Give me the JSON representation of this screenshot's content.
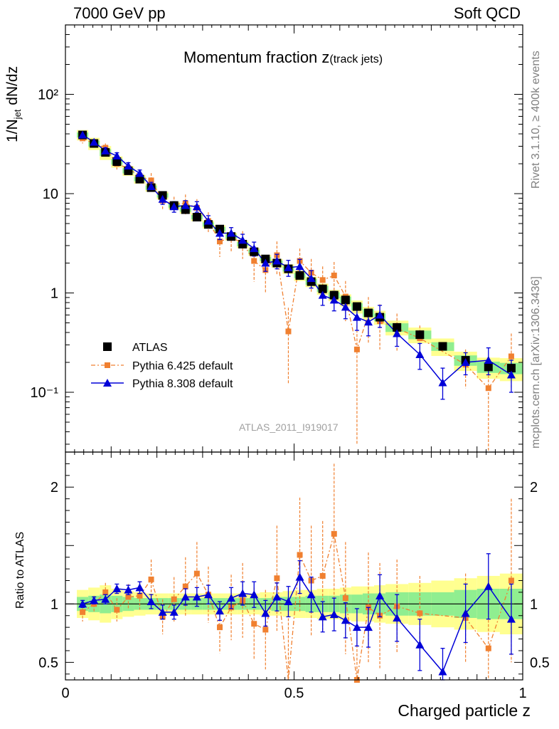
{
  "header": {
    "left": "7000 GeV pp",
    "right": "Soft QCD"
  },
  "side_labels": {
    "rivet": "Rivet 3.1.10, ≥ 400k events",
    "mcplots": "mcplots.cern.ch [arXiv:1306.3436]"
  },
  "colors": {
    "atlas": "#000000",
    "pythia6": "#f08030",
    "pythia8": "#0000d8",
    "band_inner": "#90ee90",
    "band_outer": "#ffff90",
    "watermark": "#a0a0a0"
  },
  "chart_data": [
    {
      "type": "scatter",
      "panel": "main",
      "title": "Momentum fraction z(track jets)",
      "title_main": "Momentum fraction z",
      "title_sub": "(track jets)",
      "watermark": "ATLAS_2011_I919017",
      "ylabel_main": "1/N",
      "ylabel_sub": "jet",
      "ylabel_rest": " dN/dz",
      "xlabel": "Charged particle z",
      "xlim": [
        0,
        1
      ],
      "ylim": [
        0.025,
        500
      ],
      "yscale": "log",
      "xticks": [
        "0",
        "0.5",
        "1"
      ],
      "yticks": [
        "10⁻¹",
        "1",
        "10",
        "10²"
      ],
      "legend_position": "lower-left",
      "x": [
        0.0375,
        0.0625,
        0.0875,
        0.1125,
        0.1375,
        0.1625,
        0.1875,
        0.2125,
        0.2375,
        0.2625,
        0.2875,
        0.3125,
        0.3375,
        0.3625,
        0.3875,
        0.4125,
        0.4375,
        0.4625,
        0.4875,
        0.5125,
        0.5375,
        0.5625,
        0.5875,
        0.6125,
        0.6375,
        0.6625,
        0.6875,
        0.725,
        0.775,
        0.825,
        0.875,
        0.925,
        0.975
      ],
      "series": [
        {
          "name": "ATLAS",
          "values": [
            39,
            32,
            26,
            21,
            17,
            14,
            11.5,
            9.6,
            7.6,
            6.9,
            5.8,
            4.9,
            4.4,
            3.7,
            3.1,
            2.6,
            2.2,
            2.0,
            1.75,
            1.5,
            1.3,
            1.1,
            0.95,
            0.85,
            0.73,
            0.63,
            0.57,
            0.45,
            0.38,
            0.29,
            0.21,
            0.18,
            0.175
          ]
        },
        {
          "name": "Pythia 6.425 default",
          "values": [
            36,
            32,
            29,
            20,
            18,
            15,
            13.6,
            8.5,
            7.8,
            8.0,
            7.2,
            5.3,
            3.3,
            3.6,
            3.2,
            2.1,
            1.7,
            2.4,
            0.41,
            2.1,
            1.6,
            1.35,
            1.5,
            0.92,
            0.27,
            0.61,
            0.52,
            0.44,
            0.35,
            null,
            0.19,
            0.11,
            0.23
          ],
          "err_low": [
            4,
            3,
            3,
            2.5,
            2.5,
            2,
            2.5,
            1.5,
            1.5,
            1.8,
            1.6,
            1.2,
            1.0,
            1.0,
            1.0,
            0.8,
            0.7,
            0.9,
            0.29,
            0.7,
            0.6,
            0.5,
            0.55,
            0.4,
            0.24,
            0.3,
            0.25,
            0.18,
            0.12,
            0,
            0.08,
            0.09,
            0.12
          ],
          "err_high": [
            4,
            3,
            3,
            2.5,
            2.5,
            2,
            2.5,
            1.5,
            1.5,
            1.8,
            1.6,
            1.2,
            1.0,
            1.0,
            1.0,
            0.8,
            0.7,
            0.9,
            0.3,
            0.7,
            0.6,
            0.5,
            0.55,
            0.4,
            0.2,
            0.3,
            0.25,
            0.18,
            0.12,
            0,
            0.08,
            0.09,
            0.16
          ]
        },
        {
          "name": "Pythia 8.308 default",
          "values": [
            39,
            33,
            27,
            24,
            19,
            16,
            11.8,
            8.8,
            7.4,
            7.6,
            7.4,
            5.3,
            4.0,
            4.0,
            3.4,
            2.8,
            2.0,
            2.1,
            1.8,
            1.85,
            1.4,
            0.95,
            0.85,
            0.72,
            0.57,
            0.51,
            0.6,
            0.39,
            0.24,
            0.125,
            0.2,
            0.21,
            0.15
          ],
          "err_low": [
            2.5,
            2,
            2,
            1.8,
            1.5,
            1.3,
            1.2,
            1.0,
            0.9,
            0.9,
            0.9,
            0.7,
            0.55,
            0.55,
            0.5,
            0.45,
            0.35,
            0.35,
            0.33,
            0.33,
            0.28,
            0.2,
            0.19,
            0.17,
            0.15,
            0.14,
            0.15,
            0.1,
            0.07,
            0.04,
            0.05,
            0.06,
            0.05
          ],
          "err_high": [
            2.5,
            2,
            2,
            1.8,
            1.5,
            1.3,
            1.2,
            1.0,
            0.9,
            0.9,
            0.9,
            0.7,
            0.55,
            0.55,
            0.5,
            0.45,
            0.35,
            0.35,
            0.33,
            0.33,
            0.28,
            0.2,
            0.19,
            0.17,
            0.15,
            0.14,
            0.15,
            0.1,
            0.07,
            0.05,
            0.05,
            0.07,
            0.06
          ]
        }
      ]
    },
    {
      "type": "line",
      "panel": "ratio",
      "ylabel": "Ratio to ATLAS",
      "xlabel": "Charged particle z",
      "xlim": [
        0,
        1
      ],
      "ylim": [
        0.35,
        2.3
      ],
      "xticks": [
        "0",
        "0.5",
        "1"
      ],
      "yticks": [
        "0.5",
        "1",
        "2"
      ],
      "reference_line": 1,
      "band_edges": [
        0.025,
        0.05,
        0.075,
        0.1,
        0.125,
        0.15,
        0.175,
        0.2,
        0.225,
        0.25,
        0.275,
        0.3,
        0.325,
        0.35,
        0.375,
        0.4,
        0.425,
        0.45,
        0.475,
        0.5,
        0.525,
        0.55,
        0.575,
        0.6,
        0.625,
        0.65,
        0.675,
        0.7,
        0.75,
        0.8,
        0.85,
        0.9,
        0.95,
        1.0
      ],
      "band_inner_half": [
        0.06,
        0.07,
        0.08,
        0.07,
        0.06,
        0.05,
        0.05,
        0.05,
        0.05,
        0.05,
        0.05,
        0.05,
        0.05,
        0.05,
        0.05,
        0.05,
        0.05,
        0.06,
        0.06,
        0.06,
        0.07,
        0.07,
        0.07,
        0.08,
        0.08,
        0.09,
        0.09,
        0.1,
        0.1,
        0.1,
        0.12,
        0.13,
        0.13
      ],
      "band_outer_half": [
        0.12,
        0.14,
        0.16,
        0.13,
        0.11,
        0.1,
        0.09,
        0.09,
        0.09,
        0.09,
        0.09,
        0.09,
        0.09,
        0.09,
        0.09,
        0.09,
        0.1,
        0.1,
        0.11,
        0.12,
        0.12,
        0.13,
        0.13,
        0.14,
        0.15,
        0.15,
        0.16,
        0.17,
        0.18,
        0.2,
        0.22,
        0.24,
        0.26
      ],
      "series": [
        {
          "name": "Pythia 6.425 default",
          "values": [
            0.93,
            1.0,
            1.1,
            0.95,
            1.06,
            1.07,
            1.21,
            0.89,
            1.04,
            1.15,
            1.26,
            1.08,
            0.8,
            0.97,
            1.03,
            0.83,
            0.78,
            1.22,
            0.25,
            1.42,
            1.2,
            1.24,
            1.6,
            1.05,
            0.35,
            0.97,
            0.9,
            0.98,
            0.92,
            null,
            0.88,
            0.62,
            1.2
          ],
          "err": [
            0.08,
            0.07,
            0.08,
            0.1,
            0.11,
            0.12,
            0.17,
            0.15,
            0.19,
            0.25,
            0.27,
            0.24,
            0.22,
            0.28,
            0.32,
            0.31,
            0.34,
            0.45,
            0.7,
            0.49,
            0.47,
            0.47,
            0.6,
            0.48,
            0.3,
            0.47,
            0.45,
            0.4,
            0.32,
            0,
            0.38,
            0.5,
            0.7
          ]
        },
        {
          "name": "Pythia 8.308 default",
          "values": [
            1.0,
            1.03,
            1.04,
            1.13,
            1.12,
            1.14,
            1.02,
            0.93,
            0.93,
            1.06,
            1.06,
            1.08,
            0.94,
            1.05,
            1.09,
            1.08,
            0.92,
            1.06,
            1.02,
            1.23,
            1.08,
            0.89,
            0.91,
            0.86,
            0.8,
            0.8,
            1.07,
            0.88,
            0.65,
            0.42,
            0.92,
            1.15,
            0.87
          ],
          "err": [
            0.03,
            0.03,
            0.04,
            0.04,
            0.04,
            0.05,
            0.06,
            0.06,
            0.06,
            0.07,
            0.08,
            0.08,
            0.08,
            0.09,
            0.1,
            0.11,
            0.11,
            0.12,
            0.13,
            0.14,
            0.15,
            0.13,
            0.14,
            0.15,
            0.16,
            0.17,
            0.18,
            0.2,
            0.22,
            0.2,
            0.25,
            0.28,
            0.3
          ]
        }
      ]
    }
  ]
}
